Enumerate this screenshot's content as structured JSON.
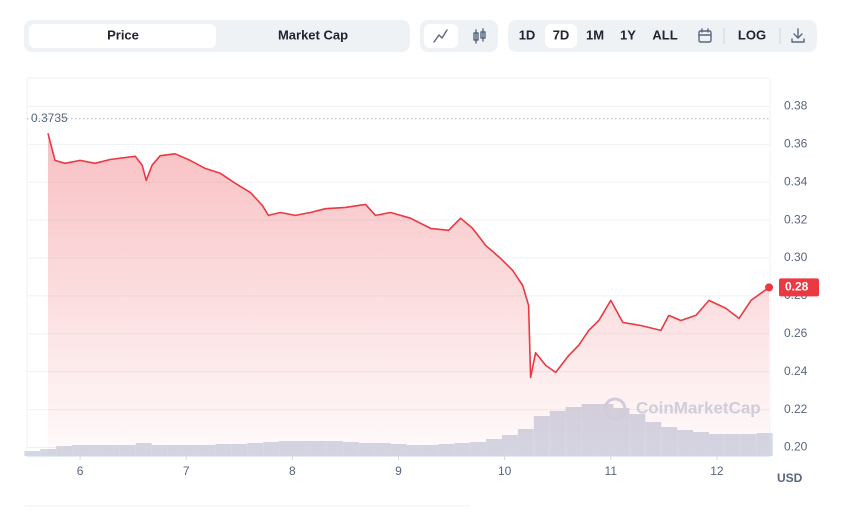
{
  "toolbar": {
    "tabs": [
      "Price",
      "Market Cap"
    ],
    "active_tab": 0,
    "ranges": [
      "1D",
      "7D",
      "1M",
      "1Y",
      "ALL"
    ],
    "active_range": 1,
    "log": "LOG"
  },
  "chart_data": {
    "type": "line",
    "color": "#ea3943",
    "x": [
      5.698,
      5.764,
      5.858,
      6.0,
      6.142,
      6.283,
      6.519,
      6.585,
      6.623,
      6.679,
      6.755,
      6.896,
      7.038,
      7.179,
      7.321,
      7.462,
      7.604,
      7.717,
      7.774,
      7.887,
      8.028,
      8.17,
      8.311,
      8.5,
      8.689,
      8.783,
      8.925,
      9.113,
      9.302,
      9.472,
      9.585,
      9.698,
      9.821,
      9.962,
      10.075,
      10.17,
      10.226,
      10.245,
      10.292,
      10.387,
      10.481,
      10.604,
      10.698,
      10.792,
      10.887,
      11.0,
      11.113,
      11.283,
      11.472,
      11.547,
      11.66,
      11.802,
      11.925,
      12.085,
      12.208,
      12.321,
      12.491
    ],
    "values": [
      0.3658,
      0.3515,
      0.35,
      0.3515,
      0.35,
      0.352,
      0.3537,
      0.349,
      0.341,
      0.349,
      0.354,
      0.355,
      0.3515,
      0.3473,
      0.3447,
      0.3394,
      0.3346,
      0.3278,
      0.3225,
      0.324,
      0.3225,
      0.324,
      0.326,
      0.3267,
      0.3283,
      0.3225,
      0.324,
      0.321,
      0.3156,
      0.3146,
      0.321,
      0.3156,
      0.3067,
      0.2998,
      0.2935,
      0.2855,
      0.275,
      0.237,
      0.25,
      0.2433,
      0.2396,
      0.2486,
      0.2539,
      0.2618,
      0.267,
      0.2776,
      0.266,
      0.2644,
      0.2618,
      0.2697,
      0.267,
      0.2697,
      0.2776,
      0.2734,
      0.2681,
      0.2776,
      0.2845
    ],
    "high": 0.3735,
    "current_price": 0.28,
    "volume": {
      "color": "#d3d8e5",
      "x": [
        5.55,
        5.7,
        5.85,
        6.0,
        6.15,
        6.3,
        6.45,
        6.6,
        6.75,
        6.9,
        7.05,
        7.2,
        7.35,
        7.5,
        7.65,
        7.8,
        7.95,
        8.1,
        8.25,
        8.4,
        8.55,
        8.7,
        8.85,
        9.0,
        9.15,
        9.3,
        9.45,
        9.6,
        9.75,
        9.9,
        10.05,
        10.2,
        10.35,
        10.5,
        10.65,
        10.8,
        10.95,
        11.1,
        11.25,
        11.4,
        11.55,
        11.7,
        11.85,
        12.0,
        12.15,
        12.3,
        12.45
      ],
      "values": [
        5,
        7,
        10,
        11,
        11,
        11,
        11,
        13,
        11,
        11,
        11,
        11,
        12,
        12,
        13,
        14,
        15,
        15,
        15,
        15,
        14,
        13,
        13,
        12,
        11,
        11,
        12,
        13,
        14,
        17,
        21,
        27,
        40,
        45,
        49,
        52,
        52,
        48,
        42,
        34,
        29,
        26,
        24,
        22,
        22,
        22,
        23
      ]
    },
    "xlim": [
      5.5,
      12.5
    ],
    "xticks": [
      6,
      7,
      8,
      9,
      10,
      11,
      12
    ],
    "ylim": [
      0.1955,
      0.395
    ],
    "yticks": [
      {
        "value": 0.2,
        "label": "0.20"
      },
      0.22,
      0.24,
      0.26,
      0.28,
      {
        "value": 0.3,
        "label": "0.30"
      },
      0.32,
      0.34,
      0.36,
      0.38
    ],
    "grid": true,
    "y_unit": "USD",
    "watermark": "CoinMarketCap"
  }
}
